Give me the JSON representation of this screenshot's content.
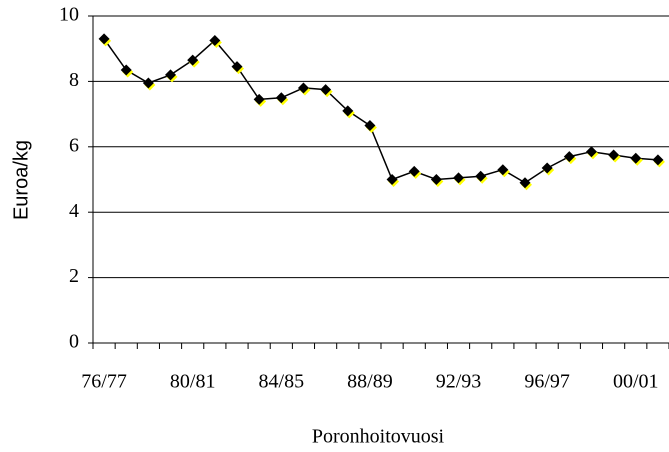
{
  "chart_data": {
    "type": "line",
    "x_label": "Poronhoitovuosi",
    "y_label": "Euroa/kg",
    "categories": [
      "76/77",
      null,
      null,
      null,
      "80/81",
      null,
      null,
      null,
      "84/85",
      null,
      null,
      null,
      "88/89",
      null,
      null,
      null,
      "92/93",
      null,
      null,
      null,
      "96/97",
      null,
      null,
      null,
      "00/01",
      null
    ],
    "series": [
      {
        "color": "#000000",
        "marker_color": "#000000",
        "marker_shadow": "#ffff00",
        "values": [
          9.3,
          8.35,
          7.95,
          8.2,
          8.65,
          9.25,
          8.45,
          7.45,
          7.5,
          7.8,
          7.75,
          7.1,
          6.65,
          5.0,
          5.25,
          5.0,
          5.05,
          5.1,
          5.3,
          4.9,
          5.35,
          5.7,
          5.85,
          5.75,
          5.65,
          5.6
        ]
      }
    ],
    "ylim": [
      0,
      10
    ],
    "yticks": [
      0,
      2,
      4,
      6,
      8,
      10
    ],
    "grid": true
  }
}
